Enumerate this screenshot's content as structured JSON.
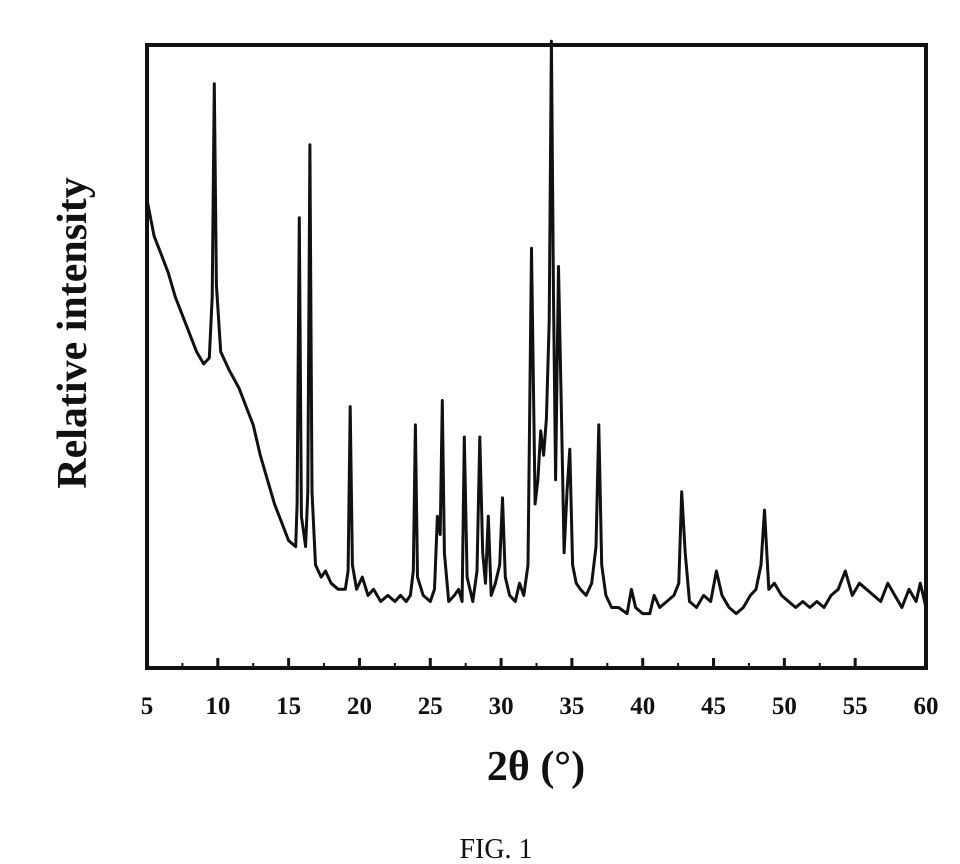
{
  "figure": {
    "caption": "FIG. 1"
  },
  "chart_data": {
    "type": "line",
    "title": "",
    "xlabel": "2θ (°)",
    "ylabel": "Relative intensity",
    "xlim": [
      5,
      60
    ],
    "ylim": [
      0,
      100
    ],
    "x_ticks": [
      5,
      10,
      15,
      20,
      25,
      30,
      35,
      40,
      45,
      50,
      55,
      60
    ],
    "y_ticks_shown": false,
    "grid": false,
    "legend": "none",
    "line_color": "#111111",
    "series": [
      {
        "x": [
          5.0,
          5.5,
          6.0,
          6.5,
          7.0,
          7.5,
          8.0,
          8.5,
          9.0,
          9.4,
          9.6,
          9.75,
          9.9,
          10.2,
          10.8,
          11.5,
          12.0,
          12.5,
          13.0,
          13.5,
          14.0,
          14.5,
          15.0,
          15.5,
          15.6,
          15.75,
          15.9,
          16.2,
          16.35,
          16.5,
          16.65,
          16.9,
          17.3,
          17.6,
          18.0,
          18.5,
          19.0,
          19.2,
          19.35,
          19.5,
          19.8,
          20.2,
          20.6,
          21.0,
          21.5,
          22.0,
          22.5,
          22.9,
          23.3,
          23.6,
          23.8,
          23.95,
          24.1,
          24.5,
          25.0,
          25.3,
          25.5,
          25.7,
          25.85,
          26.0,
          26.3,
          26.7,
          27.0,
          27.25,
          27.4,
          27.6,
          28.0,
          28.3,
          28.5,
          28.7,
          28.9,
          29.1,
          29.3,
          29.6,
          29.9,
          30.1,
          30.3,
          30.6,
          31.0,
          31.3,
          31.6,
          31.9,
          32.15,
          32.4,
          32.6,
          32.8,
          33.0,
          33.2,
          33.4,
          33.55,
          33.7,
          33.85,
          34.05,
          34.25,
          34.45,
          34.65,
          34.85,
          35.05,
          35.3,
          35.6,
          36.0,
          36.4,
          36.7,
          36.9,
          37.1,
          37.4,
          37.8,
          38.3,
          38.9,
          39.2,
          39.5,
          40.0,
          40.5,
          40.8,
          41.2,
          41.7,
          42.2,
          42.55,
          42.75,
          43.0,
          43.3,
          43.8,
          44.3,
          44.8,
          45.2,
          45.6,
          46.1,
          46.6,
          47.1,
          47.6,
          48.0,
          48.35,
          48.6,
          48.9,
          49.3,
          49.8,
          50.3,
          50.8,
          51.3,
          51.8,
          52.3,
          52.8,
          53.3,
          53.8,
          54.3,
          54.8,
          55.3,
          55.8,
          56.3,
          56.8,
          57.3,
          57.8,
          58.3,
          58.8,
          59.3,
          59.6,
          60.0
        ],
        "y": [
          72,
          66,
          63,
          60,
          56,
          53,
          50,
          47,
          45,
          46,
          56,
          91,
          58,
          47,
          44,
          41,
          38,
          35,
          30,
          26,
          22,
          19,
          16,
          15,
          22,
          69,
          20,
          15,
          24,
          81,
          24,
          12,
          10,
          11,
          9,
          8,
          8,
          11,
          38,
          12,
          8,
          10,
          7,
          8,
          6,
          7,
          6,
          7,
          6,
          7,
          11,
          35,
          10,
          7,
          6,
          8,
          20,
          17,
          39,
          14,
          6,
          7,
          8,
          6,
          33,
          10,
          6,
          11,
          33,
          14,
          9,
          20,
          7,
          9,
          12,
          23,
          10,
          7,
          6,
          9,
          7,
          12,
          64,
          22,
          26,
          34,
          30,
          36,
          52,
          98,
          56,
          26,
          61,
          38,
          14,
          24,
          31,
          12,
          9,
          8,
          7,
          9,
          15,
          35,
          12,
          7,
          5,
          5,
          4,
          8,
          5,
          4,
          4,
          7,
          5,
          6,
          7,
          9,
          24,
          14,
          6,
          5,
          7,
          6,
          11,
          7,
          5,
          4,
          5,
          7,
          8,
          12,
          21,
          8,
          9,
          7,
          6,
          5,
          6,
          5,
          6,
          5,
          7,
          8,
          11,
          7,
          9,
          8,
          7,
          6,
          9,
          7,
          5,
          8,
          6,
          9,
          5
        ]
      }
    ]
  }
}
